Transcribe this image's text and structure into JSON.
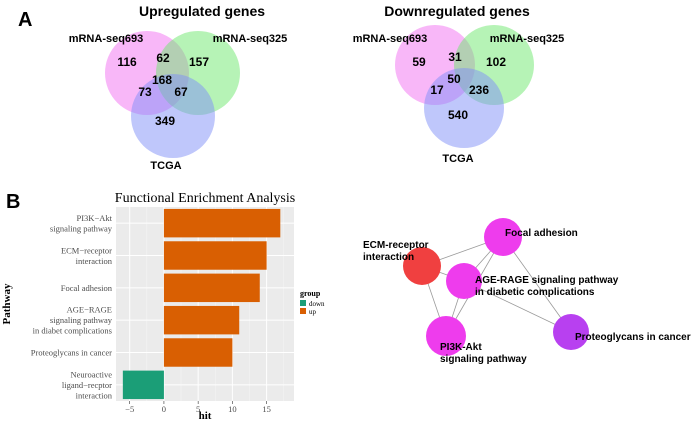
{
  "panel_a": {
    "label": "A",
    "venns": [
      {
        "title": "Upregulated genes",
        "set_labels": [
          "mRNA-seq693",
          "mRNA-seq325",
          "TCGA"
        ],
        "regions": {
          "only1": "116",
          "only2": "157",
          "only3": "349",
          "v12": "62",
          "v13": "73",
          "v23": "67",
          "v123": "168"
        }
      },
      {
        "title": "Downregulated genes",
        "set_labels": [
          "mRNA-seq693",
          "mRNA-seq325",
          "TCGA"
        ],
        "regions": {
          "only1": "59",
          "only2": "102",
          "only3": "540",
          "v12": "31",
          "v13": "17",
          "v23": "236",
          "v123": "50"
        }
      }
    ],
    "colors": {
      "set1": "#f26ff2",
      "set2": "#6ee86e",
      "set3": "#7f8ff7"
    }
  },
  "panel_b": {
    "label": "B",
    "network": {
      "nodes": [
        {
          "id": "ecm",
          "label_lines": [
            "ECM-receptor",
            "interaction"
          ],
          "color": "#f04040"
        },
        {
          "id": "focal",
          "label_lines": [
            "Focal adhesion"
          ],
          "color": "#ee3ced"
        },
        {
          "id": "age",
          "label_lines": [
            "AGE-RAGE signaling pathway",
            "in diabetic complications"
          ],
          "color": "#ee3ced"
        },
        {
          "id": "pi3k",
          "label_lines": [
            "PI3K-Akt",
            "signaling pathway"
          ],
          "color": "#ee3ced"
        },
        {
          "id": "proteo",
          "label_lines": [
            "Proteoglycans in cancer"
          ],
          "color": "#b840f0"
        }
      ],
      "edges": [
        [
          "ecm",
          "focal"
        ],
        [
          "ecm",
          "age"
        ],
        [
          "ecm",
          "pi3k"
        ],
        [
          "focal",
          "age"
        ],
        [
          "focal",
          "pi3k"
        ],
        [
          "focal",
          "proteo"
        ],
        [
          "age",
          "pi3k"
        ],
        [
          "age",
          "proteo"
        ]
      ]
    }
  },
  "chart_data": {
    "type": "bar",
    "orientation": "horizontal",
    "title": "Functional Enrichment Analysis",
    "xlabel": "hit",
    "ylabel": "Pathway",
    "categories": [
      [
        "PI3K−Akt",
        "signaling pathway"
      ],
      [
        "ECM−receptor",
        "interaction"
      ],
      [
        "Focal adhesion"
      ],
      [
        "AGE−RAGE",
        "signaling pathway",
        "in diabet complications"
      ],
      [
        "Proteoglycans in cancer"
      ],
      [
        "Neuroactive",
        "ligand−recptor",
        "interaction"
      ]
    ],
    "values": [
      17,
      15,
      14,
      11,
      10,
      -6
    ],
    "groups": [
      "up",
      "up",
      "up",
      "up",
      "up",
      "down"
    ],
    "xlim": [
      -7,
      19
    ],
    "xticks": [
      -5,
      0,
      5,
      10,
      15
    ],
    "grid": true,
    "legend": {
      "title": "group",
      "entries": [
        {
          "name": "down",
          "color": "#1b9e77"
        },
        {
          "name": "up",
          "color": "#d95f02"
        }
      ],
      "placement": "right"
    }
  }
}
